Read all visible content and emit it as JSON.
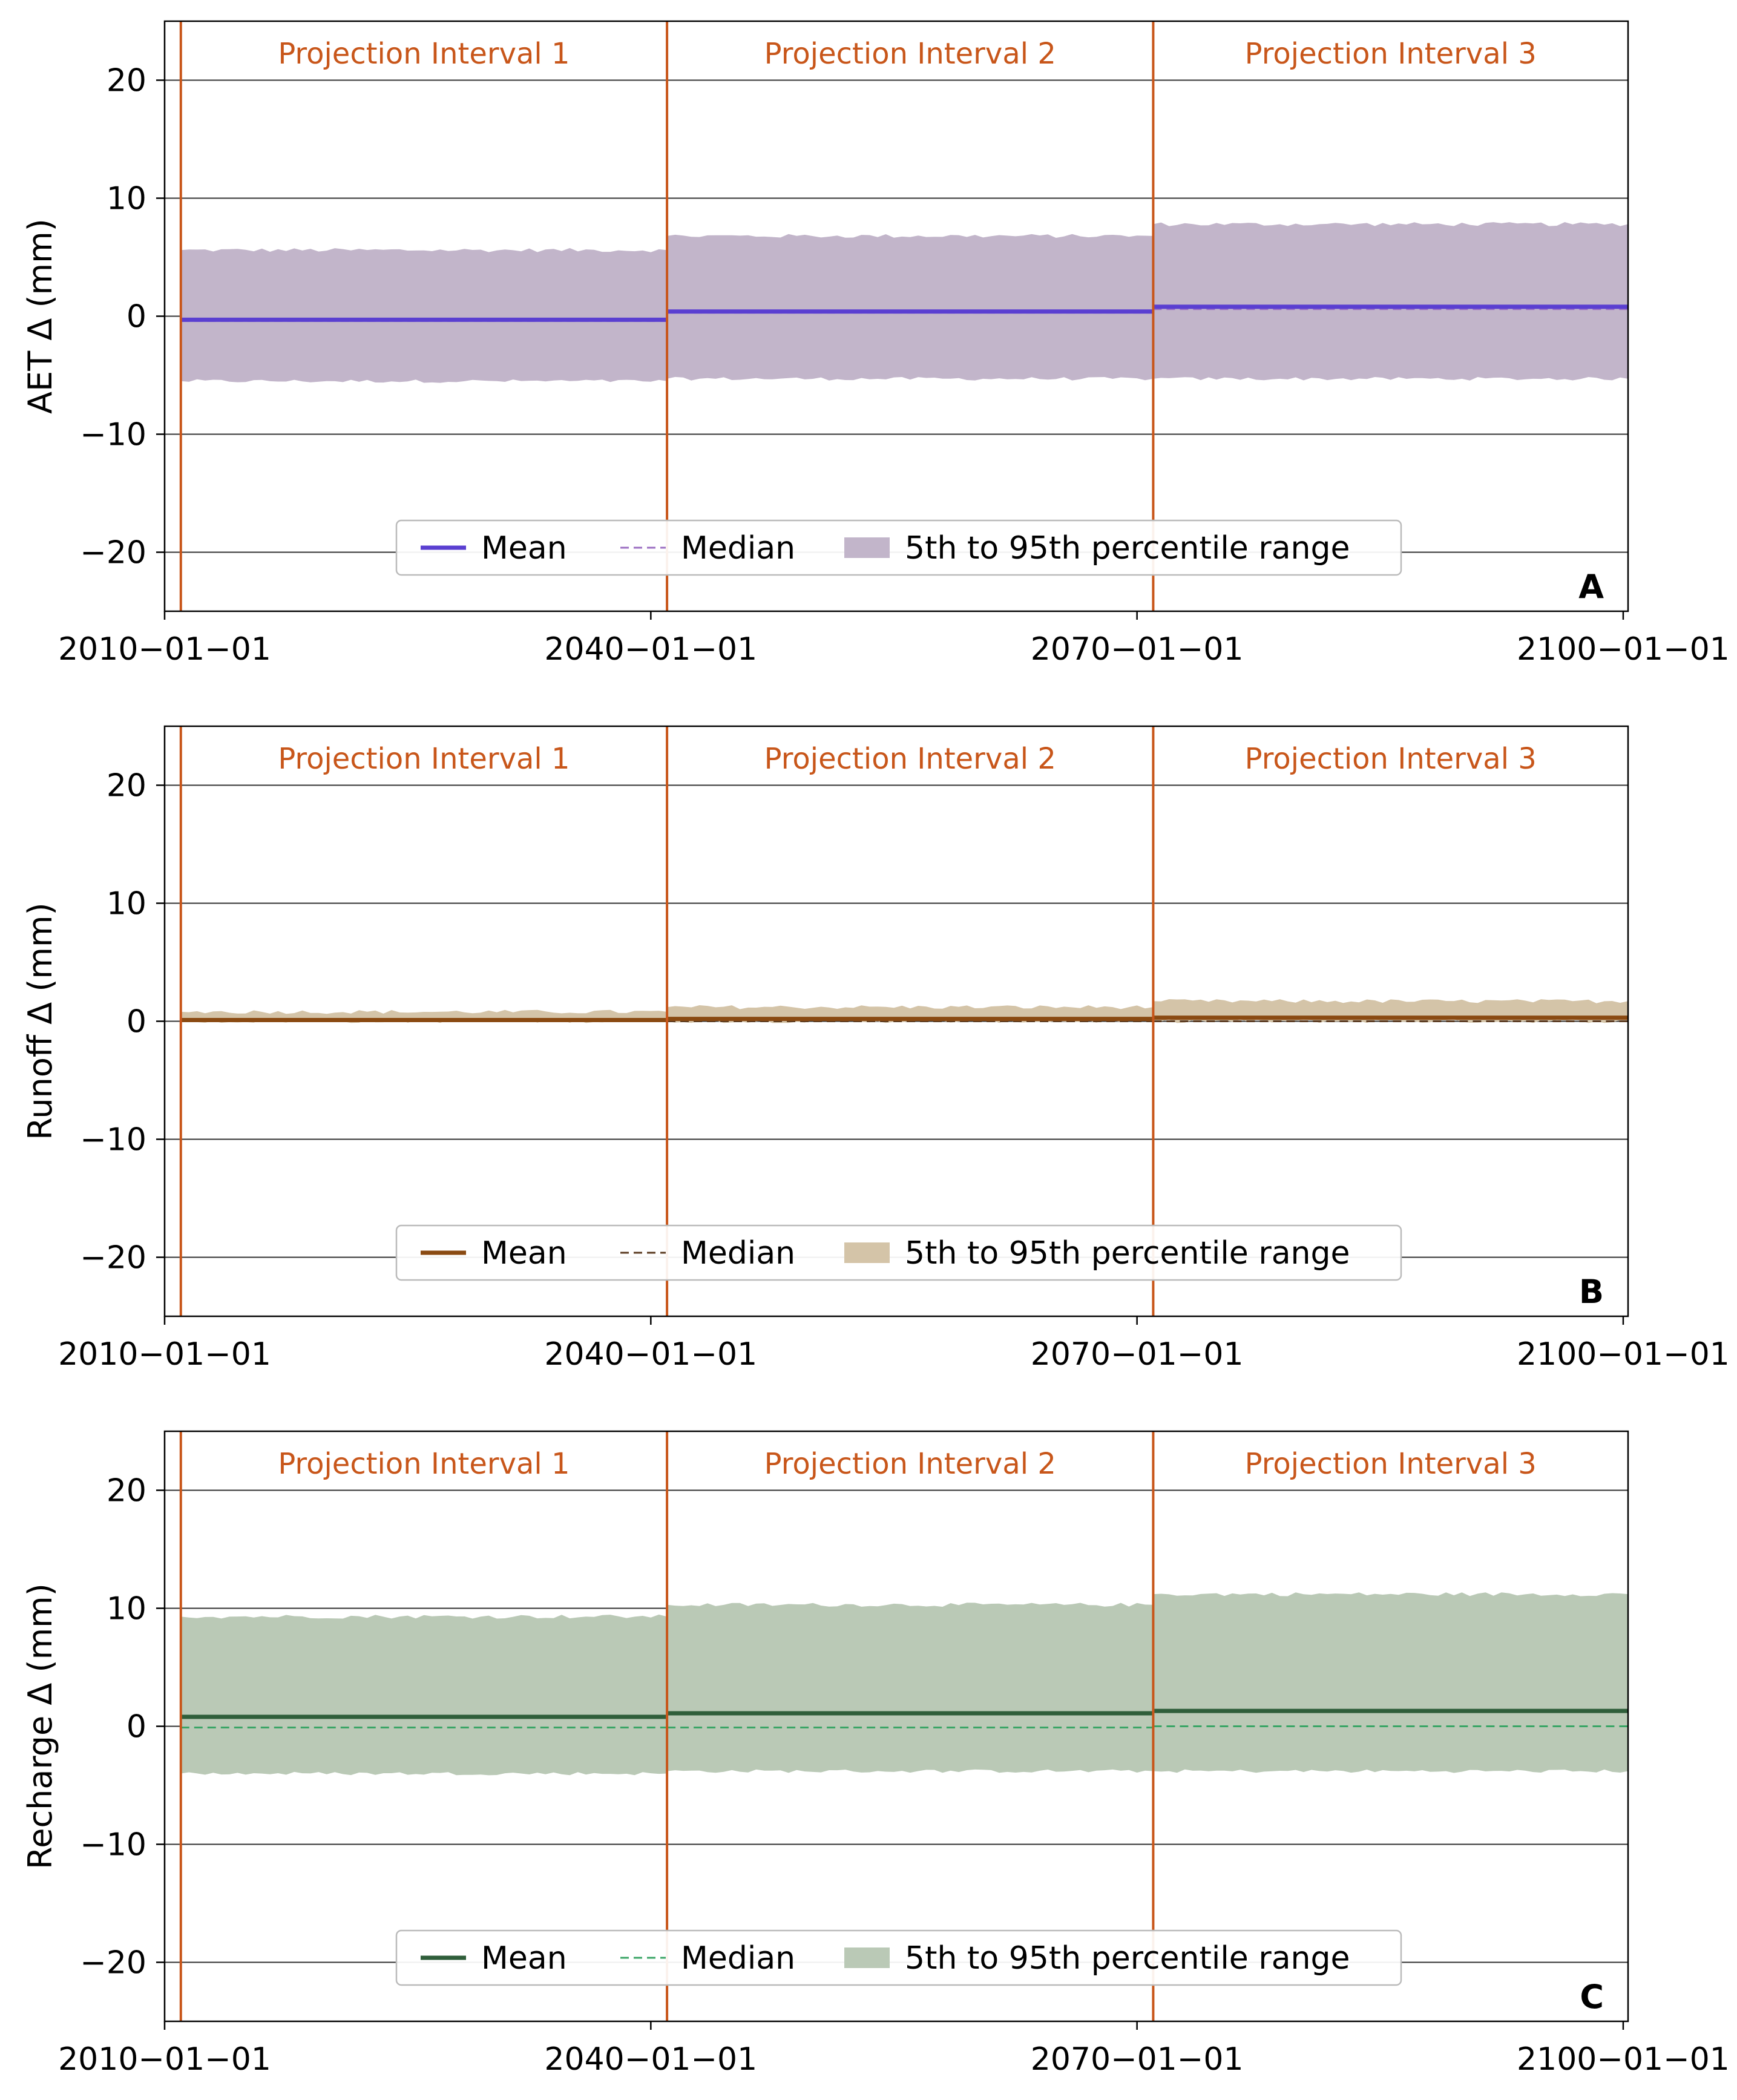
{
  "chart_data": [
    {
      "panel": "A",
      "type": "area",
      "ylabel": "AET Δ (mm)",
      "ylim": [
        -25,
        25
      ],
      "yticks": [
        -20,
        -10,
        0,
        10,
        20
      ],
      "ytick_labels": [
        "−20",
        "−10",
        "0",
        "10",
        "20"
      ],
      "xlim": [
        2010.0,
        2100.3
      ],
      "xticks": [
        2010,
        2040,
        2070,
        2100
      ],
      "xtick_labels": [
        "2010−01−01",
        "2040−01−01",
        "2070−01−01",
        "2100−01−01"
      ],
      "grid": true,
      "colors": {
        "mean": "#5a3fd1",
        "median": "#9b6fc2",
        "band": "#c2b5ca"
      },
      "intervals": [
        {
          "label": "Projection Interval 1",
          "start": 2011,
          "end": 2041,
          "mean": -0.3,
          "median": -0.4,
          "p5": -5.5,
          "p95": 5.6
        },
        {
          "label": "Projection Interval 2",
          "start": 2041,
          "end": 2071,
          "mean": 0.4,
          "median": 0.3,
          "p5": -5.3,
          "p95": 6.8
        },
        {
          "label": "Projection Interval 3",
          "start": 2071,
          "end": 2100.3,
          "mean": 0.8,
          "median": 0.6,
          "p5": -5.3,
          "p95": 7.8
        }
      ],
      "legend": {
        "mean": "Mean",
        "median": "Median",
        "band": "5th to 95th percentile range"
      },
      "legend_placement": "lower-center"
    },
    {
      "panel": "B",
      "type": "area",
      "ylabel": "Runoff Δ (mm)",
      "ylim": [
        -25,
        25
      ],
      "yticks": [
        -20,
        -10,
        0,
        10,
        20
      ],
      "ytick_labels": [
        "−20",
        "−10",
        "0",
        "10",
        "20"
      ],
      "xlim": [
        2010.0,
        2100.3
      ],
      "xticks": [
        2010,
        2040,
        2070,
        2100
      ],
      "xtick_labels": [
        "2010−01−01",
        "2040−01−01",
        "2070−01−01",
        "2100−01−01"
      ],
      "grid": true,
      "colors": {
        "mean": "#8a4a12",
        "median": "#5a3a20",
        "band": "#d4c4a8"
      },
      "intervals": [
        {
          "label": "Projection Interval 1",
          "start": 2011,
          "end": 2041,
          "mean": 0.1,
          "median": 0.0,
          "p5": 0.0,
          "p95": 0.8
        },
        {
          "label": "Projection Interval 2",
          "start": 2041,
          "end": 2071,
          "mean": 0.2,
          "median": 0.0,
          "p5": 0.0,
          "p95": 1.2
        },
        {
          "label": "Projection Interval 3",
          "start": 2071,
          "end": 2100.3,
          "mean": 0.3,
          "median": 0.0,
          "p5": 0.0,
          "p95": 1.7
        }
      ],
      "legend": {
        "mean": "Mean",
        "median": "Median",
        "band": "5th to 95th percentile range"
      },
      "legend_placement": "lower-center"
    },
    {
      "panel": "C",
      "type": "area",
      "ylabel": "Recharge Δ (mm)",
      "ylim": [
        -25,
        25
      ],
      "yticks": [
        -20,
        -10,
        0,
        10,
        20
      ],
      "ytick_labels": [
        "−20",
        "−10",
        "0",
        "10",
        "20"
      ],
      "xlim": [
        2010.0,
        2100.3
      ],
      "xticks": [
        2010,
        2040,
        2070,
        2100
      ],
      "xtick_labels": [
        "2010−01−01",
        "2040−01−01",
        "2070−01−01",
        "2100−01−01"
      ],
      "grid": true,
      "colors": {
        "mean": "#2f5e3a",
        "median": "#3aa566",
        "band": "#bac9b6"
      },
      "intervals": [
        {
          "label": "Projection Interval 1",
          "start": 2011,
          "end": 2041,
          "mean": 0.8,
          "median": -0.1,
          "p5": -4.0,
          "p95": 9.3
        },
        {
          "label": "Projection Interval 2",
          "start": 2041,
          "end": 2071,
          "mean": 1.1,
          "median": -0.1,
          "p5": -3.8,
          "p95": 10.3
        },
        {
          "label": "Projection Interval 3",
          "start": 2071,
          "end": 2100.3,
          "mean": 1.3,
          "median": 0.0,
          "p5": -3.8,
          "p95": 11.2
        }
      ],
      "legend": {
        "mean": "Mean",
        "median": "Median",
        "band": "5th to 95th percentile range"
      },
      "legend_placement": "lower-center"
    }
  ],
  "style": {
    "interval_line_color": "#c8561a",
    "interval_label_color": "#c8561a",
    "grid_color": "#333333"
  }
}
